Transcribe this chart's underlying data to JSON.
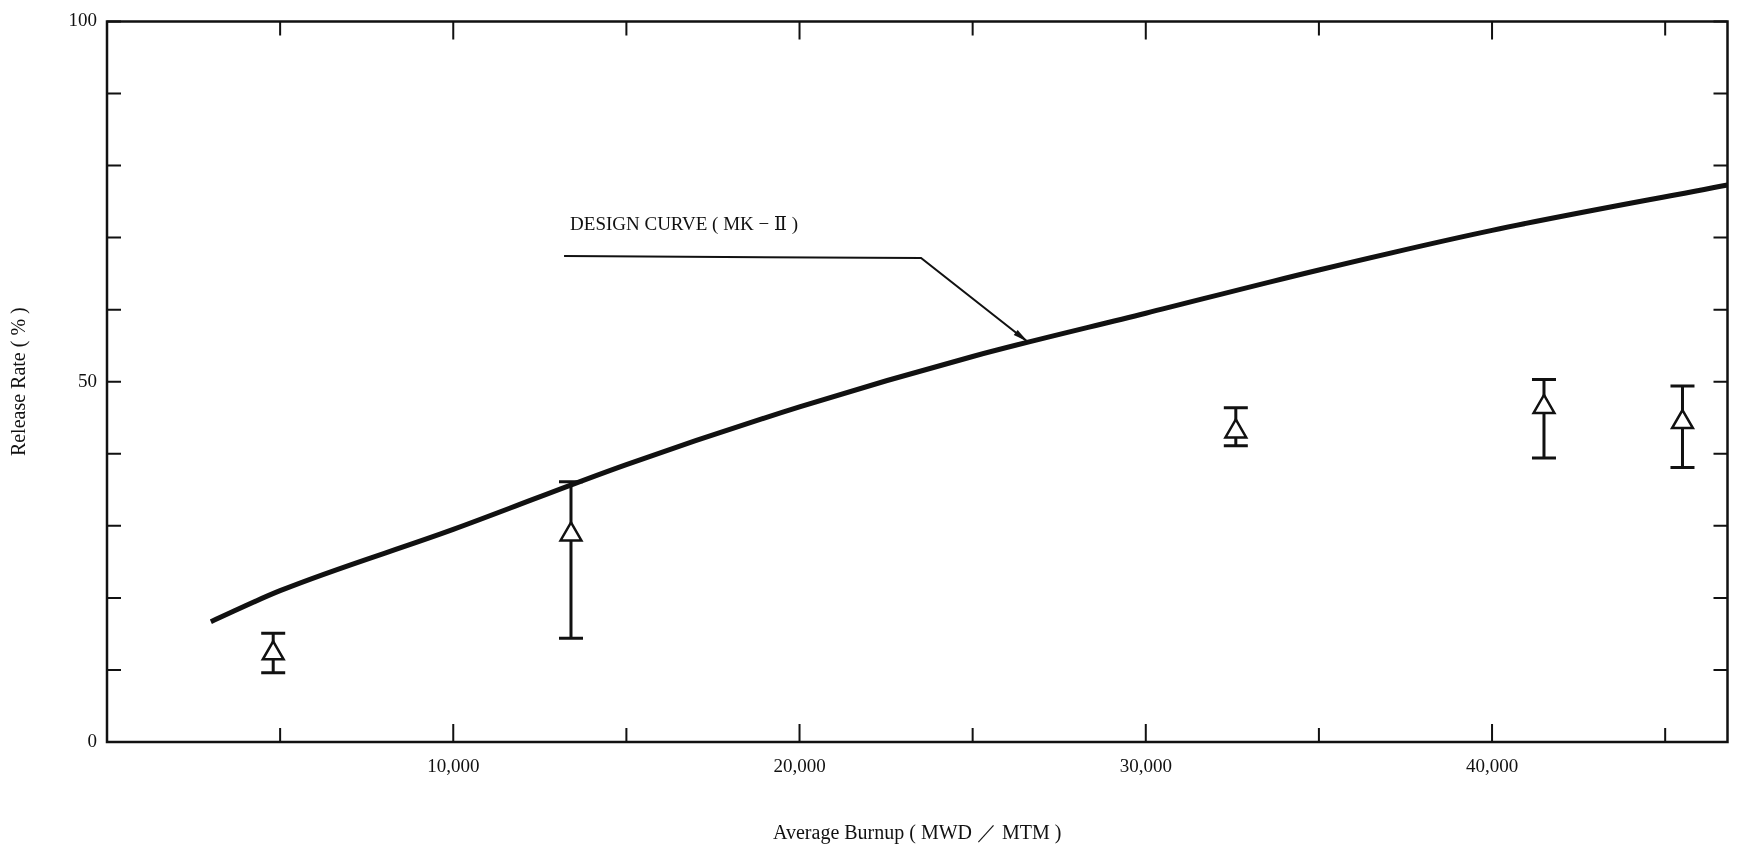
{
  "chart_data": {
    "type": "scatter",
    "xlabel": "Average Burnup ( MWD ／ MTM )",
    "ylabel": "Release Rate ( % )",
    "xlim": [
      0,
      46800
    ],
    "ylim": [
      0,
      100
    ],
    "xticks": [
      {
        "value": 5000,
        "label": null
      },
      {
        "value": 10000,
        "label": "10,000"
      },
      {
        "value": 15000,
        "label": null
      },
      {
        "value": 20000,
        "label": "20,000"
      },
      {
        "value": 25000,
        "label": null
      },
      {
        "value": 30000,
        "label": "30,000"
      },
      {
        "value": 35000,
        "label": null
      },
      {
        "value": 40000,
        "label": "40,000"
      },
      {
        "value": 45000,
        "label": null
      }
    ],
    "yticks": [
      0,
      {
        "value": 10,
        "label": null
      },
      {
        "value": 20,
        "label": null
      },
      {
        "value": 30,
        "label": null
      },
      {
        "value": 40,
        "label": null
      },
      50,
      {
        "value": 60,
        "label": null
      },
      {
        "value": 70,
        "label": null
      },
      {
        "value": 80,
        "label": null
      },
      {
        "value": 90,
        "label": null
      },
      100
    ],
    "grid": false,
    "series": [
      {
        "type": "line",
        "color": "#111111",
        "marker": "none",
        "line_style": "solid",
        "x": [
          3000,
          5000,
          10000,
          15000,
          20000,
          25000,
          30000,
          35000,
          40000,
          46800
        ],
        "values": [
          16.7,
          21,
          29.5,
          38.5,
          46.5,
          53.5,
          59.5,
          65.5,
          71,
          77.3
        ]
      },
      {
        "color": "#111111",
        "marker": "triangle",
        "x": [
          4800,
          13400,
          32600,
          41500,
          45500
        ],
        "values": [
          12.3,
          28.8,
          43.1,
          46.5,
          44.4
        ],
        "errors": [
          [
            9.6,
            15.1
          ],
          [
            14.4,
            36.1
          ],
          [
            41.1,
            46.4
          ],
          [
            39.4,
            50.3
          ],
          [
            38.1,
            49.4
          ]
        ]
      }
    ],
    "annotations": [
      {
        "text": "DESIGN CURVE ( MK − Ⅱ )",
        "x": 26600,
        "y": 55.5
      }
    ]
  }
}
